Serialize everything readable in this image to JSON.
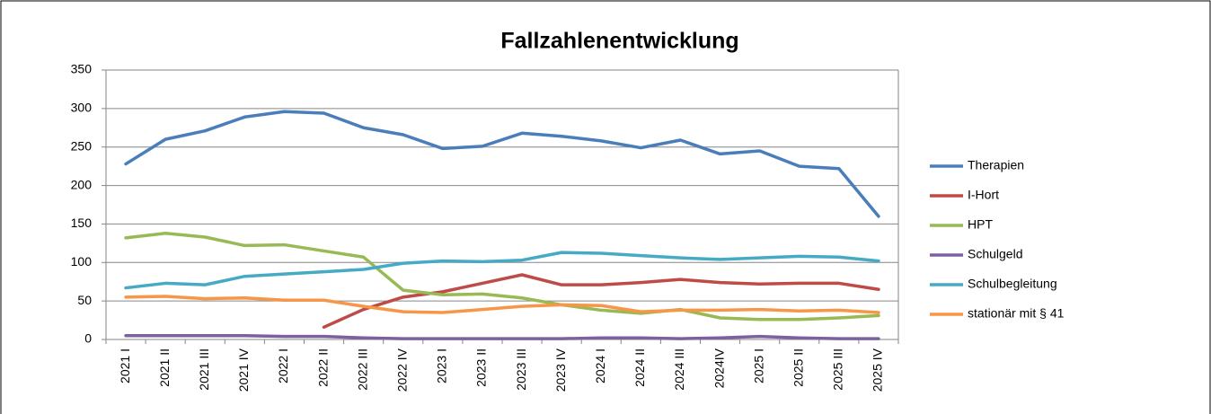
{
  "chart_data": {
    "type": "line",
    "title": "Fallzahlenentwicklung",
    "categories": [
      "2021 I",
      "2021 II",
      "2021 III",
      "2021 IV",
      "2022 I",
      "2022 II",
      "2022 III",
      "2022 IV",
      "2023 I",
      "2023 II",
      "2023 III",
      "2023 IV",
      "2024 I",
      "2024 II",
      "2024 III",
      "2024IV",
      "2025 I",
      "2025 II",
      "2025 III",
      "2025 IV"
    ],
    "series": [
      {
        "name": "Therapien",
        "color": "#4a7ebb",
        "values": [
          228,
          260,
          271,
          289,
          296,
          294,
          275,
          266,
          248,
          251,
          268,
          264,
          258,
          249,
          259,
          241,
          245,
          225,
          222,
          160
        ]
      },
      {
        "name": "I-Hort",
        "color": "#be4b48",
        "values": [
          null,
          null,
          null,
          null,
          null,
          16,
          39,
          55,
          62,
          73,
          84,
          71,
          71,
          74,
          78,
          74,
          72,
          73,
          73,
          65
        ]
      },
      {
        "name": "HPT",
        "color": "#98b954",
        "values": [
          132,
          138,
          133,
          122,
          123,
          115,
          107,
          64,
          58,
          59,
          54,
          45,
          38,
          34,
          39,
          28,
          26,
          26,
          28,
          31
        ]
      },
      {
        "name": "Schulgeld",
        "color": "#7d60a0",
        "values": [
          5,
          5,
          5,
          5,
          4,
          4,
          2,
          1,
          1,
          1,
          1,
          1,
          2,
          2,
          1,
          2,
          4,
          2,
          1,
          1
        ]
      },
      {
        "name": "Schulbegleitung",
        "color": "#46aac5",
        "values": [
          67,
          73,
          71,
          82,
          85,
          88,
          91,
          99,
          102,
          101,
          103,
          113,
          112,
          109,
          106,
          104,
          106,
          108,
          107,
          102
        ]
      },
      {
        "name": "stationär mit § 41",
        "color": "#f79646",
        "values": [
          55,
          56,
          53,
          54,
          51,
          51,
          43,
          36,
          35,
          39,
          43,
          45,
          44,
          36,
          38,
          38,
          39,
          37,
          38,
          35
        ]
      }
    ],
    "ylim": [
      0,
      350
    ],
    "yticks": [
      0,
      50,
      100,
      150,
      200,
      250,
      300,
      350
    ],
    "grid": true,
    "legend": "right"
  }
}
